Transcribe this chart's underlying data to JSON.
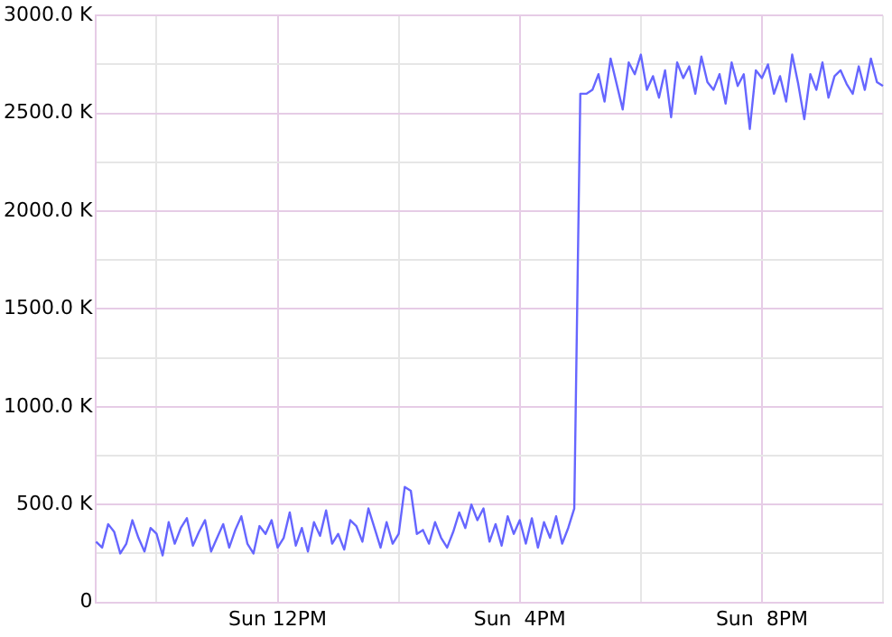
{
  "chart_data": {
    "type": "line",
    "ylim": [
      0,
      3000
    ],
    "categories": [
      null,
      null,
      null,
      null,
      null,
      null,
      null,
      null,
      null,
      null,
      null,
      null,
      null,
      null,
      null,
      null,
      null,
      null,
      null,
      null,
      null,
      null,
      null,
      null,
      null,
      null,
      null,
      null,
      null,
      null,
      "Sun 12PM",
      null,
      null,
      null,
      null,
      null,
      null,
      null,
      null,
      null,
      null,
      null,
      null,
      null,
      null,
      null,
      null,
      null,
      null,
      null,
      null,
      null,
      null,
      null,
      null,
      null,
      null,
      null,
      null,
      null,
      null,
      null,
      null,
      null,
      null,
      null,
      null,
      null,
      null,
      null,
      "Sun  4PM",
      null,
      null,
      null,
      null,
      null,
      null,
      null,
      null,
      null,
      null,
      null,
      null,
      null,
      null,
      null,
      null,
      null,
      null,
      null,
      null,
      null,
      null,
      null,
      null,
      null,
      null,
      null,
      null,
      null,
      null,
      null,
      null,
      null,
      null,
      null,
      null,
      null,
      null,
      null,
      "Sun  8PM",
      null,
      null,
      null,
      null,
      null,
      null,
      null,
      null,
      null,
      null,
      null,
      null,
      null,
      null,
      null,
      null,
      null,
      null,
      null,
      null
    ],
    "yticks": [
      {
        "value": 0,
        "label": "0"
      },
      {
        "value": 250,
        "label": null
      },
      {
        "value": 500,
        "label": "500.0 K"
      },
      {
        "value": 750,
        "label": null
      },
      {
        "value": 1000,
        "label": "1000.0 K"
      },
      {
        "value": 1250,
        "label": null
      },
      {
        "value": 1500,
        "label": "1500.0 K"
      },
      {
        "value": 1750,
        "label": null
      },
      {
        "value": 2000,
        "label": "2000.0 K"
      },
      {
        "value": 2250,
        "label": null
      },
      {
        "value": 2500,
        "label": "2500.0 K"
      },
      {
        "value": 2750,
        "label": null
      },
      {
        "value": 3000,
        "label": "3000.0 K"
      }
    ],
    "grid": true,
    "legend": false,
    "marker": "none",
    "line_style": "solid",
    "series": [
      {
        "color": "#6666ff",
        "values": [
          310,
          280,
          400,
          360,
          250,
          300,
          420,
          330,
          260,
          380,
          350,
          240,
          410,
          300,
          380,
          430,
          290,
          360,
          420,
          260,
          330,
          400,
          280,
          370,
          440,
          300,
          250,
          390,
          350,
          420,
          280,
          330,
          460,
          290,
          380,
          260,
          410,
          340,
          470,
          300,
          350,
          270,
          420,
          390,
          310,
          480,
          380,
          280,
          410,
          300,
          350,
          590,
          570,
          350,
          370,
          300,
          410,
          330,
          280,
          360,
          460,
          380,
          500,
          420,
          480,
          310,
          400,
          290,
          440,
          350,
          420,
          300,
          430,
          280,
          410,
          330,
          440,
          300,
          380,
          480,
          2600,
          2600,
          2620,
          2700,
          2560,
          2780,
          2650,
          2520,
          2760,
          2700,
          2800,
          2620,
          2690,
          2580,
          2720,
          2480,
          2760,
          2680,
          2740,
          2600,
          2790,
          2660,
          2620,
          2700,
          2550,
          2760,
          2640,
          2700,
          2420,
          2720,
          2680,
          2750,
          2600,
          2690,
          2560,
          2800,
          2650,
          2470,
          2700,
          2620,
          2760,
          2580,
          2690,
          2720,
          2650,
          2600,
          2740,
          2620,
          2780,
          2660,
          2640
        ]
      }
    ]
  }
}
